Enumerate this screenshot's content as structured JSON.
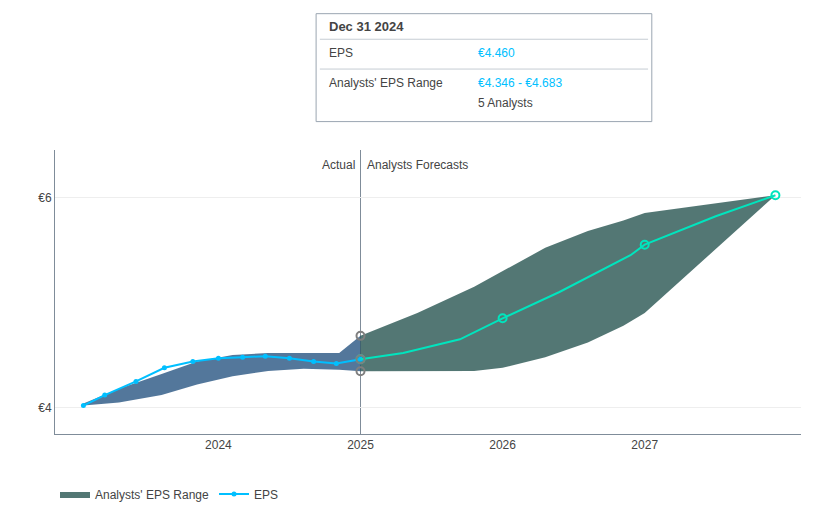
{
  "chart_data": {
    "type": "line",
    "series": [
      {
        "name": "EPS",
        "color": "#00bfff",
        "marker": "circle",
        "x": [
          2023.05,
          2023.2,
          2023.42,
          2023.62,
          2023.82,
          2024.0,
          2024.17,
          2024.33,
          2024.5,
          2024.67,
          2024.83,
          2025.0
        ],
        "values": [
          4.02,
          4.12,
          4.25,
          4.38,
          4.44,
          4.47,
          4.48,
          4.49,
          4.47,
          4.44,
          4.42,
          4.46
        ]
      },
      {
        "color": "#00e5be",
        "x": [
          2025.0,
          2025.3,
          2025.7,
          2026.0,
          2026.4,
          2026.9,
          2027.0,
          2027.5,
          2027.92
        ],
        "values": [
          4.46,
          4.52,
          4.65,
          4.85,
          5.1,
          5.45,
          5.55,
          5.82,
          6.02
        ]
      },
      {
        "color": "#00e5be",
        "type": "scatter",
        "marker": "circle-open",
        "x": [
          2025.0,
          2026.0,
          2027.0,
          2027.92
        ],
        "values": [
          4.46,
          4.85,
          5.55,
          6.02
        ]
      },
      {
        "type": "scatter",
        "marker": "circle-open",
        "x": [
          2025.0,
          2025.0,
          2025.0
        ],
        "values": [
          4.683,
          4.46,
          4.346
        ]
      }
    ],
    "bands": [
      {
        "color": "#1a4a7a",
        "x": [
          2023.05,
          2023.3,
          2023.6,
          2023.85,
          2024.1,
          2024.35,
          2024.6,
          2024.85,
          2025.0
        ],
        "upper": [
          4.04,
          4.18,
          4.32,
          4.44,
          4.5,
          4.52,
          4.52,
          4.52,
          4.683
        ],
        "lower": [
          4.02,
          4.05,
          4.12,
          4.22,
          4.3,
          4.35,
          4.37,
          4.36,
          4.346
        ]
      },
      {
        "name": "Analysts' EPS Range",
        "color": "#1a4a45",
        "x": [
          2025.0,
          2025.4,
          2025.8,
          2026.0,
          2026.3,
          2026.6,
          2026.85,
          2027.0,
          2027.92
        ],
        "upper": [
          4.683,
          4.9,
          5.15,
          5.3,
          5.52,
          5.68,
          5.78,
          5.85,
          6.02
        ],
        "lower": [
          4.346,
          4.346,
          4.35,
          4.38,
          4.48,
          4.62,
          4.78,
          4.9,
          6.02
        ]
      }
    ],
    "xlim": [
      2022.85,
      2028.1
    ],
    "xticks": [
      2024.0,
      2025.0,
      2026.0,
      2027.0
    ],
    "ylim": [
      3.75,
      6.45
    ],
    "yticks": [
      {
        "value": 4.0,
        "label": "€4"
      },
      {
        "value": 6.0,
        "label": "€6"
      }
    ],
    "grid": true,
    "legend": "bottom",
    "annotations": [
      {
        "text": "Actual",
        "x": 2025.0
      },
      {
        "text": "Analysts Forecasts",
        "x": 2025.0
      }
    ],
    "tooltip": {
      "title": "Dec 31 2024",
      "rows": [
        {
          "label": "EPS",
          "value": "€4.460"
        },
        {
          "label": "Analysts' EPS Range",
          "value": "€4.346 - €4.683"
        }
      ],
      "note": "5 Analysts"
    }
  }
}
